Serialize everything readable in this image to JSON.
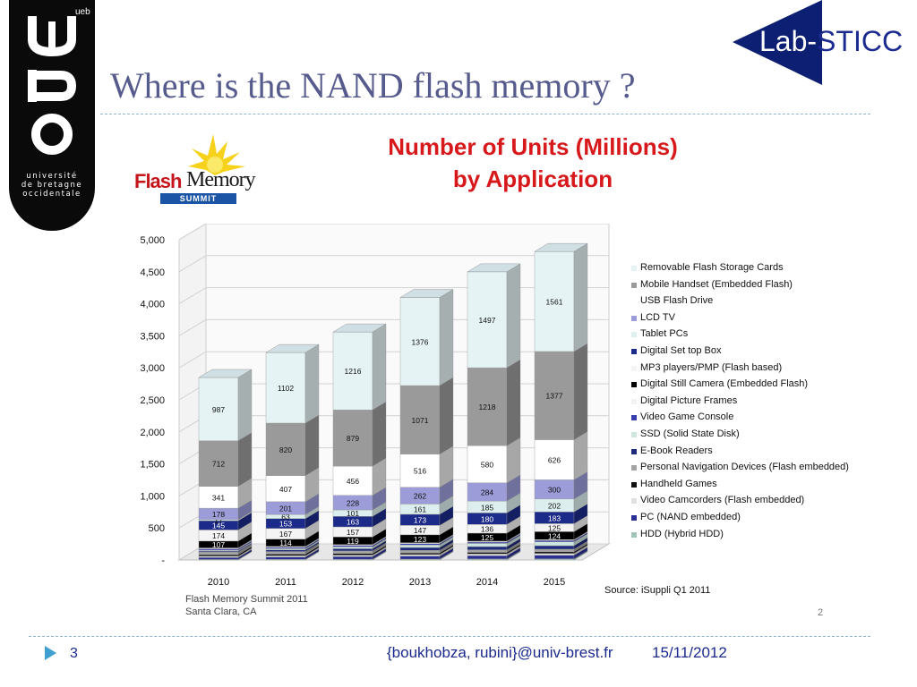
{
  "slide": {
    "title": "Where is the NAND flash memory ?",
    "page_number": "3",
    "footer_email": "{boukhobza, rubini}@univ-brest.fr",
    "footer_date": "15/11/2012",
    "inner_page": "2"
  },
  "logos": {
    "ubo_small_lines": [
      "université",
      "de bretagne",
      "occidentale"
    ],
    "ueb": "ueb",
    "lab_part1": "Lab-",
    "lab_part2": "STICC",
    "fms_flash": "Flash",
    "fms_memory": "Memory",
    "fms_summit": "SUMMIT"
  },
  "caption": {
    "line1": "Flash Memory Summit 2011",
    "line2": "Santa Clara, CA"
  },
  "chart_data": {
    "type": "bar",
    "stacked": true,
    "title_line1": "Number of Units (Millions)",
    "title_line2": "by Application",
    "source": "Source: iSuppli Q1 2011",
    "categories": [
      "2010",
      "2011",
      "2012",
      "2013",
      "2014",
      "2015"
    ],
    "ylim": [
      0,
      5000
    ],
    "yticks": [
      "-",
      "500",
      "1,000",
      "1,500",
      "2,000",
      "2,500",
      "3,000",
      "3,500",
      "4,000",
      "4,500",
      "5,000"
    ],
    "ytick_values": [
      0,
      500,
      1000,
      1500,
      2000,
      2500,
      3000,
      3500,
      4000,
      4500,
      5000
    ],
    "grid": true,
    "legend_position": "right",
    "series": [
      {
        "name": "HDD (Hybrid HDD)",
        "color": "#9fc4b8",
        "values": [
          8,
          10,
          12,
          14,
          16,
          18
        ]
      },
      {
        "name": "PC (NAND embedded)",
        "color": "#2b2f93",
        "values": [
          30,
          35,
          40,
          45,
          50,
          55
        ]
      },
      {
        "name": "Video Camcorders (Flash embedded)",
        "color": "#e0e0e0",
        "values": [
          20,
          22,
          24,
          26,
          28,
          30
        ]
      },
      {
        "name": "Handheld Games",
        "color": "#101010",
        "values": [
          25,
          25,
          25,
          25,
          25,
          25
        ]
      },
      {
        "name": "Personal Navigation Devices (Flash embedded)",
        "color": "#a4a4a4",
        "values": [
          40,
          40,
          40,
          40,
          40,
          40
        ]
      },
      {
        "name": "E-Book Readers",
        "color": "#1f2a7a",
        "values": [
          15,
          25,
          35,
          45,
          50,
          55
        ]
      },
      {
        "name": "SSD (Solid State Disk)",
        "color": "#cde6df",
        "values": [
          15,
          20,
          30,
          40,
          50,
          60
        ]
      },
      {
        "name": "Video Game Console",
        "color": "#3a3fb0",
        "values": [
          20,
          20,
          20,
          20,
          20,
          20
        ]
      },
      {
        "name": "Digital Picture Frames",
        "color": "#f2f2f2",
        "values": [
          15,
          15,
          15,
          15,
          15,
          15
        ]
      },
      {
        "name": "Digital Still Camera (Embedded Flash)",
        "color": "#000000",
        "values": [
          107,
          114,
          119,
          123,
          125,
          124
        ]
      },
      {
        "name": "MP3 players/PMP (Flash based)",
        "color": "#f4f4f4",
        "values": [
          174,
          167,
          157,
          147,
          136,
          125
        ]
      },
      {
        "name": "Digital Set top Box",
        "color": "#1c2a8a",
        "values": [
          145,
          153,
          163,
          173,
          180,
          183
        ]
      },
      {
        "name": "Tablet PCs",
        "color": "#dcefee",
        "values": [
          17,
          63,
          101,
          161,
          185,
          202
        ]
      },
      {
        "name": "LCD TV",
        "color": "#9b9cd8",
        "values": [
          178,
          201,
          228,
          262,
          284,
          300
        ]
      },
      {
        "name": "USB Flash Drive",
        "color": "#ffffff",
        "values": [
          341,
          407,
          456,
          516,
          580,
          626
        ]
      },
      {
        "name": "Mobile Handset (Embedded Flash)",
        "color": "#9a9a9a",
        "values": [
          712,
          820,
          879,
          1071,
          1218,
          1377
        ]
      },
      {
        "name": "Removable Flash Storage Cards",
        "color": "#e6f3f4",
        "values": [
          987,
          1102,
          1216,
          1376,
          1497,
          1561
        ]
      }
    ],
    "labeled_series": [
      9,
      10,
      11,
      12,
      13,
      14,
      15,
      16
    ]
  }
}
